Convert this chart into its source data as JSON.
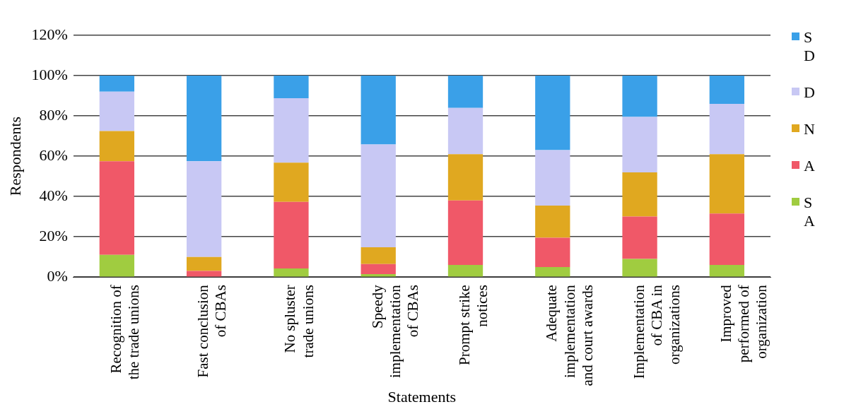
{
  "chart_data": {
    "type": "bar",
    "stacked": true,
    "xlabel": "Statements",
    "ylabel": "Respondents",
    "categories": [
      "Recognition of the trade unions",
      "Fast conclusion of CBAs",
      "No spluster trade unions",
      "Speedy implementation of CBAs",
      "Prompt strike notices",
      "Adequate implementation and court awards",
      "Implementation of CBA in organizations",
      "Improved performed of organization"
    ],
    "series": [
      {
        "name": "S A",
        "color": "#a0cc40",
        "values": [
          11,
          0,
          4.3,
          1.5,
          6,
          5,
          9,
          6
        ]
      },
      {
        "name": "A",
        "color": "#f05868",
        "values": [
          46.5,
          3,
          33,
          5,
          32,
          14.5,
          21,
          25.5
        ]
      },
      {
        "name": "N",
        "color": "#e0a820",
        "values": [
          15,
          7,
          19.5,
          8.3,
          23,
          16,
          22,
          29.5
        ]
      },
      {
        "name": "D",
        "color": "#c8c8f4",
        "values": [
          19.5,
          47.5,
          32,
          51,
          23,
          27.5,
          27.5,
          25
        ]
      },
      {
        "name": "S D",
        "color": "#3aa0e8",
        "values": [
          8,
          42.5,
          11.2,
          34.2,
          16,
          37,
          20.5,
          14
        ]
      }
    ],
    "ylim": [
      0,
      120
    ],
    "yticks": [
      {
        "value": 0,
        "label": "0%"
      },
      {
        "value": 20,
        "label": "20%"
      },
      {
        "value": 40,
        "label": "40%"
      },
      {
        "value": 60,
        "label": "60%"
      },
      {
        "value": 80,
        "label": "80%"
      },
      {
        "value": 100,
        "label": "100%"
      },
      {
        "value": 120,
        "label": "120%"
      }
    ],
    "grid": "y",
    "legend": "right"
  }
}
